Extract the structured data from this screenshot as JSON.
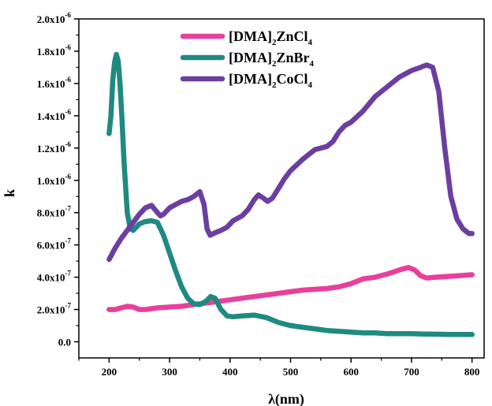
{
  "chart_data": {
    "type": "line",
    "xlabel": "λ(nm)",
    "ylabel": "k",
    "xlim": [
      150,
      820
    ],
    "ylim": [
      -0.1,
      2.0
    ],
    "x_ticks": [
      200,
      300,
      400,
      500,
      600,
      700,
      800
    ],
    "x_tick_labels": [
      "200",
      "300",
      "400",
      "500",
      "600",
      "700",
      "800"
    ],
    "y_ticks": [
      0.0,
      0.2,
      0.4,
      0.6,
      0.8,
      1.0,
      1.2,
      1.4,
      1.6,
      1.8,
      2.0
    ],
    "y_tick_labels": [
      {
        "mantissa": "0.0",
        "exp": ""
      },
      {
        "mantissa": "2.0x10",
        "exp": "-7"
      },
      {
        "mantissa": "4.0x10",
        "exp": "-7"
      },
      {
        "mantissa": "6.0x10",
        "exp": "-7"
      },
      {
        "mantissa": "8.0x10",
        "exp": "-7"
      },
      {
        "mantissa": "1.0x10",
        "exp": "-6"
      },
      {
        "mantissa": "1.2x10",
        "exp": "-6"
      },
      {
        "mantissa": "1.4x10",
        "exp": "-6"
      },
      {
        "mantissa": "1.6x10",
        "exp": "-6"
      },
      {
        "mantissa": "1.8x10",
        "exp": "-6"
      },
      {
        "mantissa": "2.0x10",
        "exp": "-6"
      }
    ],
    "y_unit_note": "y values in units of 1e-6",
    "grid": false,
    "legend_position": "top-center",
    "series": [
      {
        "name": "[DMA]2ZnCl4",
        "legend": {
          "base": "[DMA]",
          "sub1": "2",
          "mid": "ZnCl",
          "sub2": "4"
        },
        "color": "#e8409a",
        "points": [
          [
            200,
            0.2
          ],
          [
            210,
            0.2
          ],
          [
            220,
            0.21
          ],
          [
            230,
            0.22
          ],
          [
            240,
            0.215
          ],
          [
            250,
            0.2
          ],
          [
            260,
            0.2
          ],
          [
            270,
            0.205
          ],
          [
            280,
            0.21
          ],
          [
            300,
            0.215
          ],
          [
            320,
            0.22
          ],
          [
            340,
            0.23
          ],
          [
            360,
            0.24
          ],
          [
            380,
            0.25
          ],
          [
            400,
            0.26
          ],
          [
            420,
            0.27
          ],
          [
            440,
            0.28
          ],
          [
            460,
            0.29
          ],
          [
            480,
            0.3
          ],
          [
            500,
            0.31
          ],
          [
            520,
            0.32
          ],
          [
            540,
            0.325
          ],
          [
            560,
            0.33
          ],
          [
            580,
            0.34
          ],
          [
            600,
            0.36
          ],
          [
            620,
            0.39
          ],
          [
            640,
            0.4
          ],
          [
            660,
            0.42
          ],
          [
            680,
            0.445
          ],
          [
            695,
            0.46
          ],
          [
            705,
            0.445
          ],
          [
            715,
            0.41
          ],
          [
            725,
            0.395
          ],
          [
            740,
            0.4
          ],
          [
            760,
            0.405
          ],
          [
            780,
            0.41
          ],
          [
            800,
            0.415
          ]
        ]
      },
      {
        "name": "[DMA]2ZnBr4",
        "legend": {
          "base": "[DMA]",
          "sub1": "2",
          "mid": "ZnBr",
          "sub2": "4"
        },
        "color": "#1f8a80",
        "points": [
          [
            200,
            1.29
          ],
          [
            203,
            1.4
          ],
          [
            206,
            1.62
          ],
          [
            209,
            1.73
          ],
          [
            212,
            1.78
          ],
          [
            215,
            1.74
          ],
          [
            218,
            1.6
          ],
          [
            221,
            1.4
          ],
          [
            225,
            1.1
          ],
          [
            230,
            0.8
          ],
          [
            235,
            0.7
          ],
          [
            240,
            0.69
          ],
          [
            250,
            0.73
          ],
          [
            260,
            0.745
          ],
          [
            270,
            0.75
          ],
          [
            280,
            0.74
          ],
          [
            290,
            0.66
          ],
          [
            300,
            0.55
          ],
          [
            310,
            0.44
          ],
          [
            320,
            0.34
          ],
          [
            330,
            0.27
          ],
          [
            340,
            0.235
          ],
          [
            350,
            0.23
          ],
          [
            360,
            0.25
          ],
          [
            368,
            0.28
          ],
          [
            375,
            0.27
          ],
          [
            385,
            0.2
          ],
          [
            395,
            0.16
          ],
          [
            405,
            0.155
          ],
          [
            420,
            0.16
          ],
          [
            440,
            0.165
          ],
          [
            460,
            0.15
          ],
          [
            480,
            0.12
          ],
          [
            500,
            0.1
          ],
          [
            520,
            0.09
          ],
          [
            540,
            0.08
          ],
          [
            560,
            0.07
          ],
          [
            580,
            0.065
          ],
          [
            600,
            0.06
          ],
          [
            620,
            0.055
          ],
          [
            640,
            0.055
          ],
          [
            660,
            0.05
          ],
          [
            680,
            0.05
          ],
          [
            700,
            0.05
          ],
          [
            720,
            0.048
          ],
          [
            740,
            0.047
          ],
          [
            760,
            0.045
          ],
          [
            780,
            0.045
          ],
          [
            800,
            0.045
          ]
        ]
      },
      {
        "name": "[DMA]2CoCl4",
        "legend": {
          "base": "[DMA]",
          "sub1": "2",
          "mid": "CoCl",
          "sub2": "4"
        },
        "color": "#6b3fa0",
        "points": [
          [
            200,
            0.51
          ],
          [
            210,
            0.58
          ],
          [
            220,
            0.64
          ],
          [
            230,
            0.69
          ],
          [
            240,
            0.74
          ],
          [
            250,
            0.79
          ],
          [
            260,
            0.83
          ],
          [
            270,
            0.845
          ],
          [
            280,
            0.8
          ],
          [
            285,
            0.78
          ],
          [
            290,
            0.79
          ],
          [
            300,
            0.83
          ],
          [
            310,
            0.85
          ],
          [
            320,
            0.87
          ],
          [
            330,
            0.88
          ],
          [
            340,
            0.9
          ],
          [
            350,
            0.93
          ],
          [
            357,
            0.85
          ],
          [
            362,
            0.7
          ],
          [
            367,
            0.66
          ],
          [
            375,
            0.675
          ],
          [
            385,
            0.69
          ],
          [
            395,
            0.71
          ],
          [
            405,
            0.75
          ],
          [
            420,
            0.78
          ],
          [
            430,
            0.82
          ],
          [
            440,
            0.88
          ],
          [
            447,
            0.91
          ],
          [
            455,
            0.89
          ],
          [
            462,
            0.87
          ],
          [
            470,
            0.89
          ],
          [
            480,
            0.95
          ],
          [
            490,
            1.01
          ],
          [
            500,
            1.06
          ],
          [
            520,
            1.13
          ],
          [
            540,
            1.19
          ],
          [
            560,
            1.21
          ],
          [
            570,
            1.24
          ],
          [
            580,
            1.3
          ],
          [
            590,
            1.34
          ],
          [
            600,
            1.36
          ],
          [
            620,
            1.43
          ],
          [
            640,
            1.52
          ],
          [
            660,
            1.58
          ],
          [
            680,
            1.64
          ],
          [
            700,
            1.68
          ],
          [
            715,
            1.7
          ],
          [
            725,
            1.715
          ],
          [
            735,
            1.7
          ],
          [
            745,
            1.55
          ],
          [
            755,
            1.2
          ],
          [
            765,
            0.9
          ],
          [
            775,
            0.76
          ],
          [
            785,
            0.7
          ],
          [
            795,
            0.67
          ],
          [
            800,
            0.67
          ]
        ]
      }
    ]
  }
}
